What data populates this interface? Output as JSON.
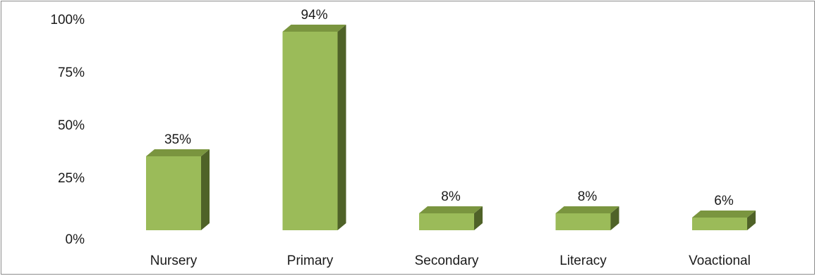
{
  "chart_data": {
    "type": "bar",
    "style": "3d-column",
    "categories": [
      "Nursery",
      "Primary",
      "Secondary",
      "Literacy",
      "Voactional"
    ],
    "values": [
      35,
      94,
      8,
      8,
      6
    ],
    "data_labels": [
      "35%",
      "94%",
      "8%",
      "8%",
      "6%"
    ],
    "y_ticks": [
      {
        "value": 0,
        "label": "0%"
      },
      {
        "value": 25,
        "label": "25%"
      },
      {
        "value": 50,
        "label": "50%"
      },
      {
        "value": 75,
        "label": "75%"
      },
      {
        "value": 100,
        "label": "100%"
      }
    ],
    "ylim": [
      0,
      100
    ],
    "grid": false,
    "legend": "none",
    "colors": {
      "front": "#9bbb59",
      "top": "#7a953f",
      "side": "#4f6228",
      "border": "#8c8c8c"
    }
  }
}
